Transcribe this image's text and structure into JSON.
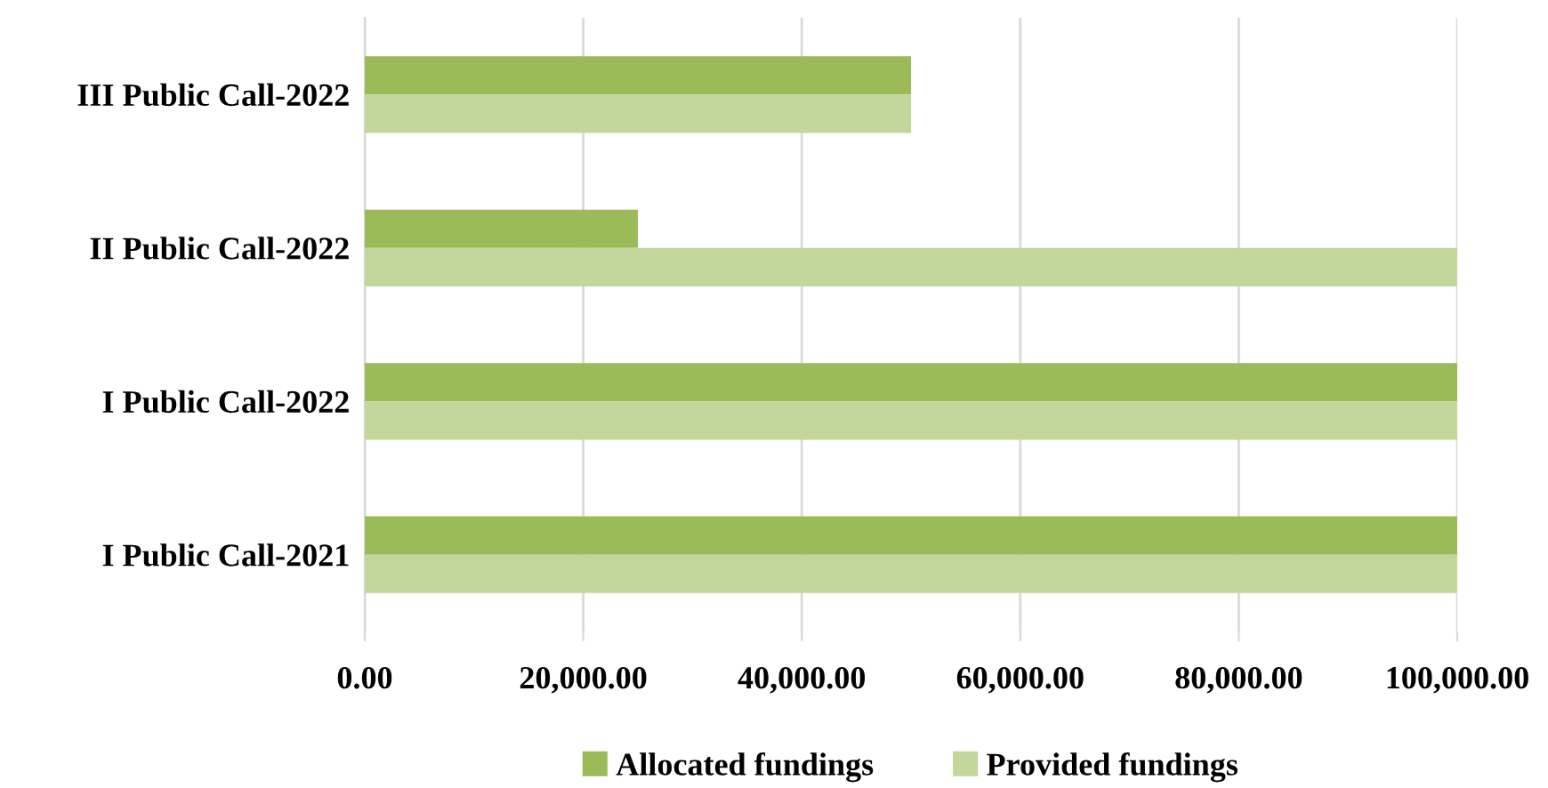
{
  "chart_data": {
    "type": "bar",
    "orientation": "horizontal",
    "categories": [
      "III Public Call-2022",
      "II Public Call-2022",
      "I Public Call-2022",
      "I Public Call-2021"
    ],
    "series": [
      {
        "name": "Allocated fundings",
        "color": "#9bbb59",
        "values": [
          50000,
          25000,
          100000,
          100000
        ]
      },
      {
        "name": "Provided fundings",
        "color": "#c3d69b",
        "values": [
          50000,
          100000,
          100000,
          100000
        ]
      }
    ],
    "xlim": [
      0,
      100000
    ],
    "xticks": [
      {
        "value": 0,
        "label": "0.00"
      },
      {
        "value": 20000,
        "label": "20,000.00"
      },
      {
        "value": 40000,
        "label": "40,000.00"
      },
      {
        "value": 60000,
        "label": "60,000.00"
      },
      {
        "value": 80000,
        "label": "80,000.00"
      },
      {
        "value": 100000,
        "label": "100,000.00"
      }
    ],
    "grid": "x",
    "legend": "bottom"
  }
}
